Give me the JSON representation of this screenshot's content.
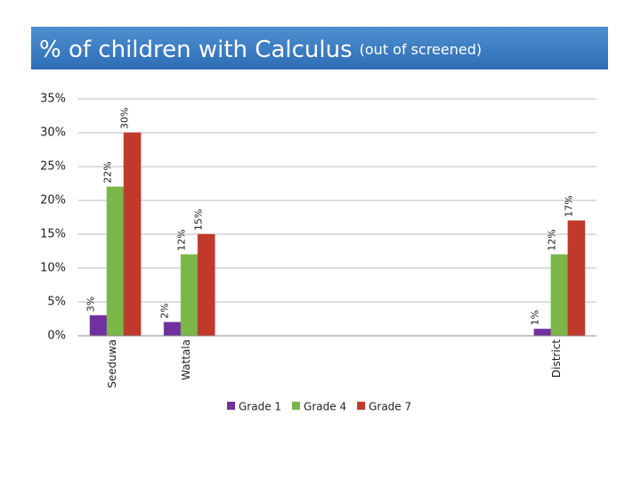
{
  "chart_data": {
    "type": "bar",
    "title": "% of children with Calculus",
    "subtitle": "(out of screened)",
    "categories": [
      "Seeduwa",
      "Wattala",
      null,
      null,
      null,
      null,
      "District"
    ],
    "series": [
      {
        "name": "Grade 1",
        "color": "#7030a0",
        "values": [
          3,
          2,
          null,
          null,
          null,
          null,
          1
        ],
        "value_labels": [
          "3%",
          "2%",
          null,
          null,
          null,
          null,
          "1%"
        ]
      },
      {
        "name": "Grade 4",
        "color": "#7ab648",
        "values": [
          22,
          12,
          null,
          null,
          null,
          null,
          12
        ],
        "value_labels": [
          "22%",
          "12%",
          null,
          null,
          null,
          null,
          "12%"
        ]
      },
      {
        "name": "Grade 7",
        "color": "#c0392b",
        "values": [
          30,
          15,
          null,
          null,
          null,
          null,
          17
        ],
        "value_labels": [
          "30%",
          "15%",
          null,
          null,
          null,
          null,
          "17%"
        ]
      }
    ],
    "ylim": [
      0,
      35
    ],
    "yticks": [
      {
        "value": 0,
        "label": "0%"
      },
      {
        "value": 5,
        "label": "5%"
      },
      {
        "value": 10,
        "label": "10%"
      },
      {
        "value": 15,
        "label": "15%"
      },
      {
        "value": 20,
        "label": "20%"
      },
      {
        "value": 25,
        "label": "25%"
      },
      {
        "value": 30,
        "label": "30%"
      },
      {
        "value": 35,
        "label": "35%"
      }
    ],
    "grid": true,
    "legend": "bottom"
  }
}
